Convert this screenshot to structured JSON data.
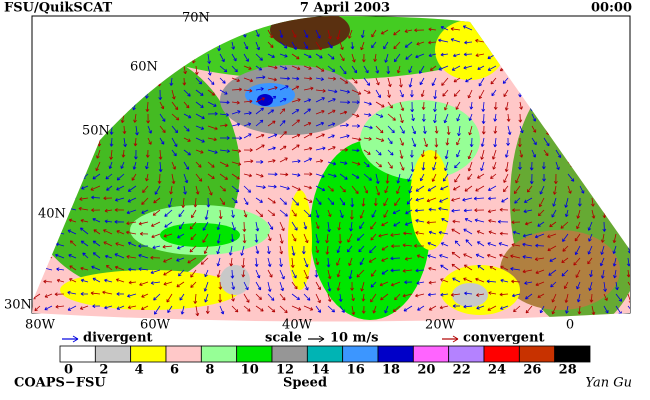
{
  "header": {
    "left": "FSU/QuikSCAT",
    "center": "7 April 2003",
    "right": "00:00"
  },
  "map": {
    "lat_labels": [
      "70N",
      "60N",
      "50N",
      "40N",
      "30N"
    ],
    "lon_labels": [
      "80W",
      "60W",
      "40W",
      "20W",
      "0"
    ]
  },
  "legend": {
    "divergent": "divergent",
    "scale": "scale",
    "scale_value": "10 m/s",
    "convergent": "convergent",
    "divergent_color": "#0000e0",
    "convergent_color": "#b00000"
  },
  "colorbar": {
    "title": "Speed",
    "ticks": [
      0,
      2,
      4,
      6,
      8,
      10,
      12,
      14,
      16,
      18,
      20,
      22,
      24,
      26,
      28
    ],
    "colors": [
      "#ffffff",
      "#c8c8c8",
      "#ffff00",
      "#ffc8c8",
      "#96ff96",
      "#00e600",
      "#969696",
      "#00b4b4",
      "#3c96ff",
      "#0000c8",
      "#ff64ff",
      "#b482ff",
      "#ff0000",
      "#c83200",
      "#000000"
    ]
  },
  "footer": {
    "left": "COAPS−FSU",
    "right": "Yan Gu"
  }
}
